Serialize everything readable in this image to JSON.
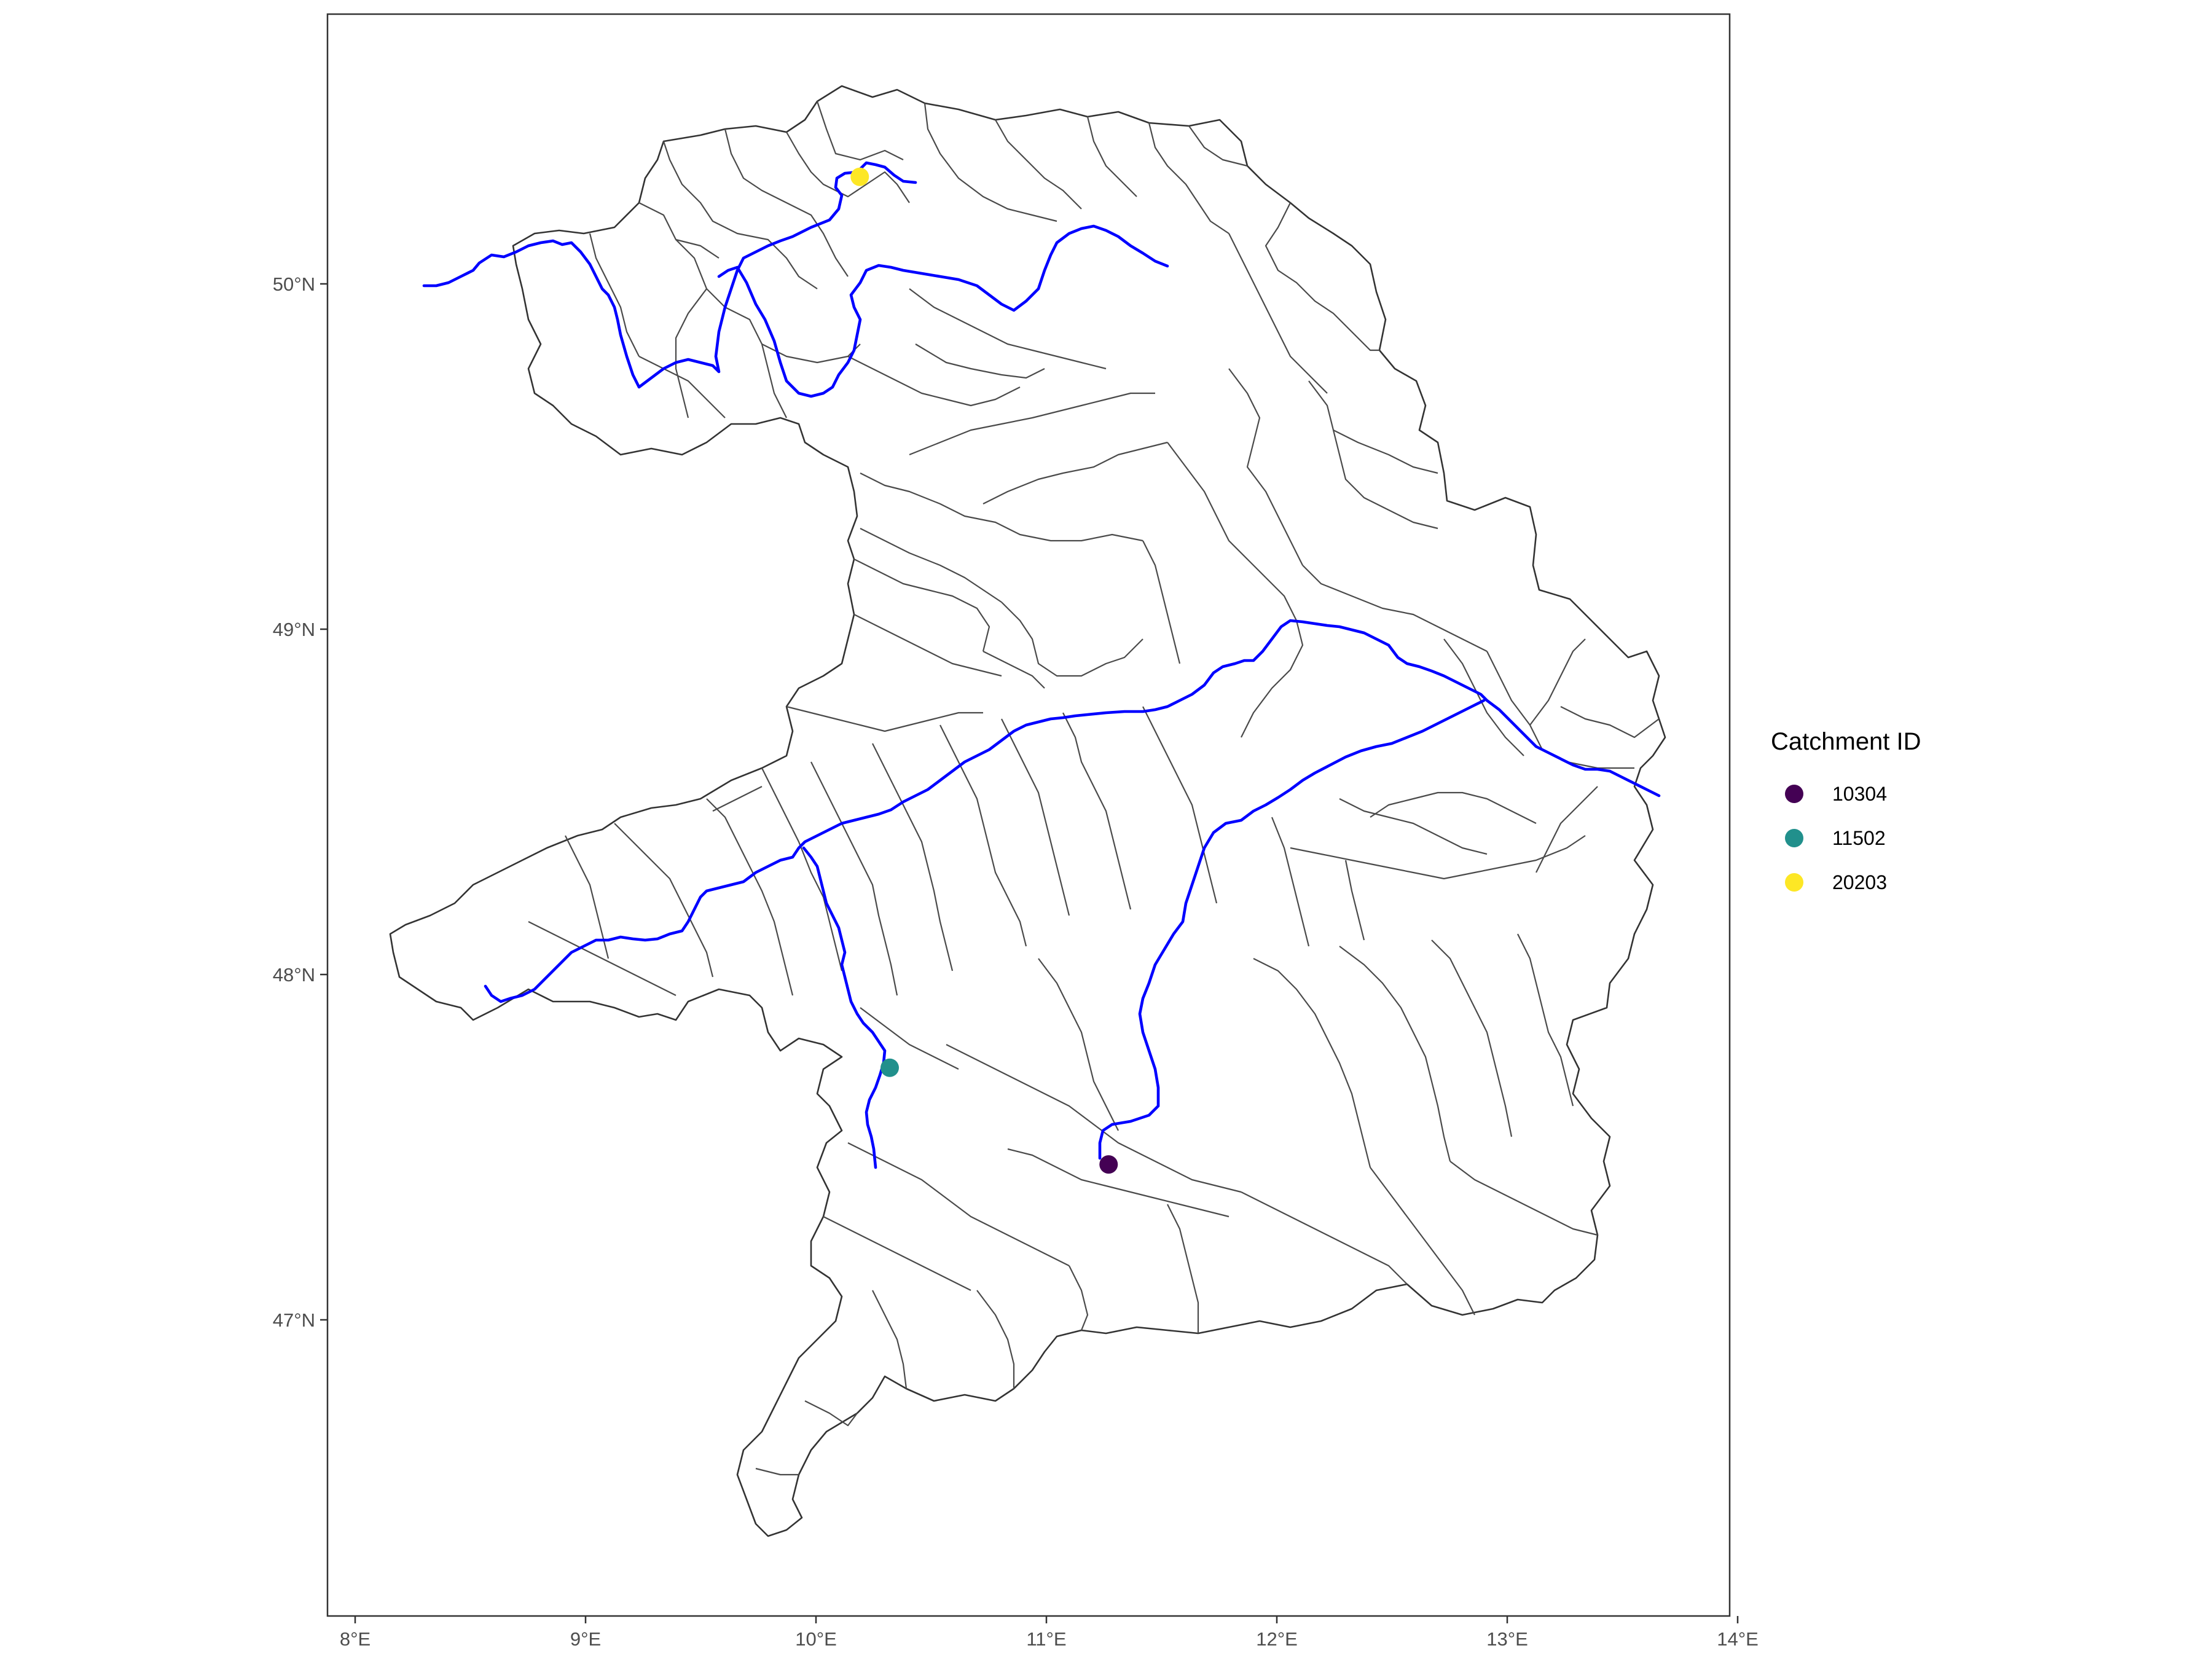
{
  "map": {
    "axis": {
      "x_ticks": [
        {
          "value": 8,
          "label": "8°E"
        },
        {
          "value": 9,
          "label": "9°E"
        },
        {
          "value": 10,
          "label": "10°E"
        },
        {
          "value": 11,
          "label": "11°E"
        },
        {
          "value": 12,
          "label": "12°E"
        },
        {
          "value": 13,
          "label": "13°E"
        },
        {
          "value": 14,
          "label": "14°E"
        }
      ],
      "y_ticks": [
        {
          "value": 47,
          "label": "47°N"
        },
        {
          "value": 48,
          "label": "48°N"
        },
        {
          "value": 49,
          "label": "49°N"
        },
        {
          "value": 50,
          "label": "50°N"
        }
      ]
    },
    "legend": {
      "title": "Catchment ID",
      "items": [
        {
          "id": "10304",
          "label": "10304",
          "color": "#440154"
        },
        {
          "id": "11502",
          "label": "11502",
          "color": "#21908C"
        },
        {
          "id": "20203",
          "label": "20203",
          "color": "#FDE725"
        }
      ]
    },
    "gauges": [
      {
        "id": "10304",
        "lon": 11.27,
        "lat": 47.45,
        "color": "#440154"
      },
      {
        "id": "11502",
        "lon": 10.32,
        "lat": 47.73,
        "color": "#21908C"
      },
      {
        "id": "20203",
        "lon": 10.19,
        "lat": 50.31,
        "color": "#FDE725"
      }
    ],
    "colors": {
      "river": "#0000FF",
      "catchment_border": "#4a4a4a",
      "panel_border": "#333333",
      "background": "#ffffff"
    }
  }
}
